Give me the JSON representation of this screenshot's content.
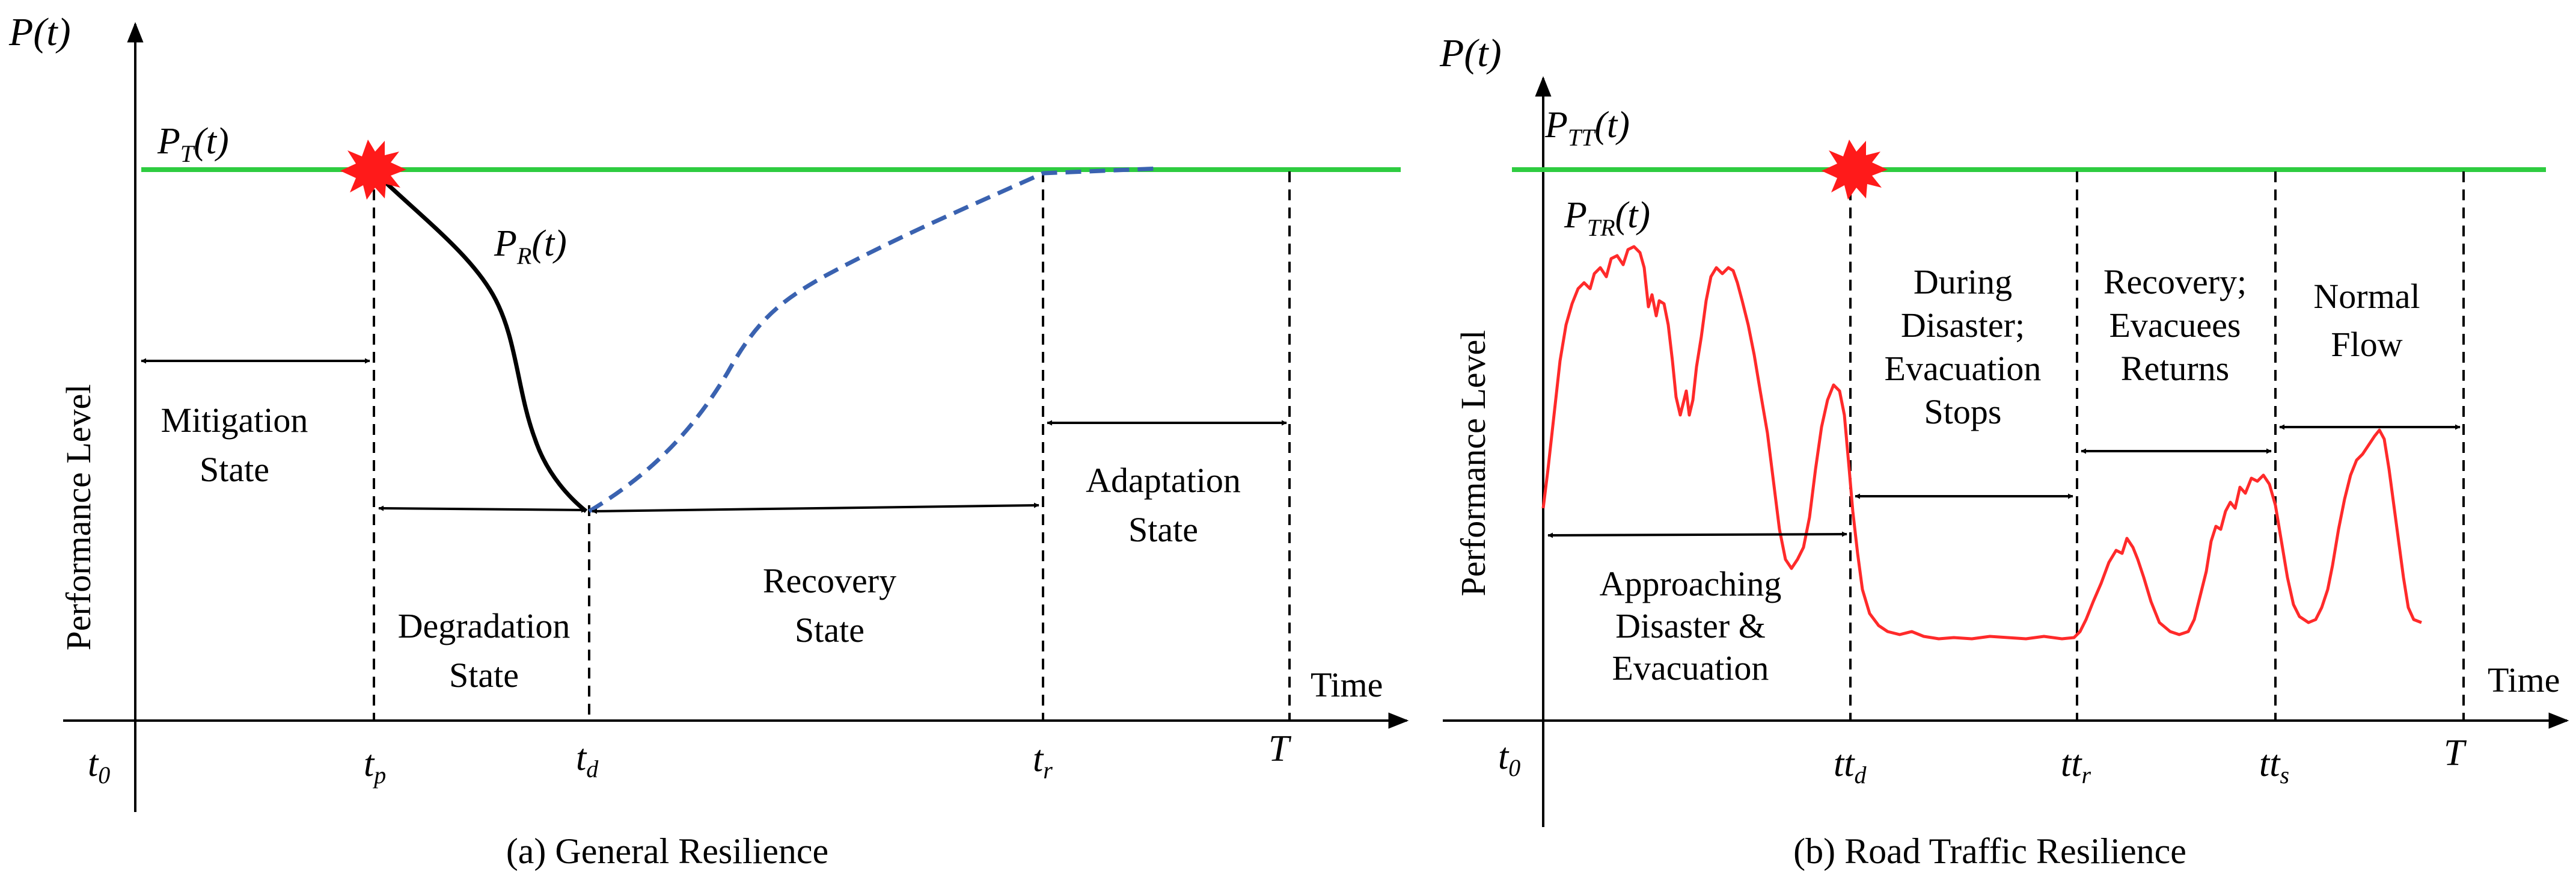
{
  "colors": {
    "target_line": "#2ecc40",
    "recovery_dashed": "#3a62b0",
    "traffic_curve": "#ff2a2a",
    "burst": "#ff1a1a",
    "axis": "#000000"
  },
  "panel_a": {
    "y_axis_label": "P(t)",
    "y_title": "Performance  Level",
    "x_title": "Time",
    "target_label": {
      "base": "P",
      "sub": "T",
      "tail": "(t)"
    },
    "degradation_curve_label": {
      "base": "P",
      "sub": "R",
      "tail": "(t)"
    },
    "ticks": [
      {
        "base": "t",
        "sub": "0"
      },
      {
        "base": "t",
        "sub": "p"
      },
      {
        "base": "t",
        "sub": "d"
      },
      {
        "base": "t",
        "sub": "r"
      },
      {
        "base": "T",
        "sub": ""
      }
    ],
    "states": {
      "mitigation": [
        "Mitigation",
        "State"
      ],
      "degradation": [
        "Degradation",
        "State"
      ],
      "recovery": [
        "Recovery",
        "State"
      ],
      "adaptation": [
        "Adaptation",
        "State"
      ]
    },
    "caption": "(a) General Resilience"
  },
  "panel_b": {
    "y_axis_label": "P(t)",
    "y_title": "Performance Level",
    "x_title": "Time",
    "target_label": {
      "base": "P",
      "sub": "TT",
      "tail": "(t)"
    },
    "real_label": {
      "base": "P",
      "sub": "TR",
      "tail": "(t)"
    },
    "ticks": [
      {
        "base": "t",
        "sub": "0"
      },
      {
        "base": "tt",
        "sub": "d"
      },
      {
        "base": "tt",
        "sub": "r"
      },
      {
        "base": "tt",
        "sub": "s"
      },
      {
        "base": "T",
        "sub": ""
      }
    ],
    "states": {
      "approaching": [
        "Approaching",
        "Disaster &",
        "Evacuation"
      ],
      "during": [
        "During",
        "Disaster;",
        "Evacuation",
        "Stops"
      ],
      "recovery": [
        "Recovery;",
        "Evacuees",
        "Returns"
      ],
      "normal": [
        "Normal",
        "Flow"
      ]
    },
    "caption": "(b) Road Traffic Resilience"
  }
}
